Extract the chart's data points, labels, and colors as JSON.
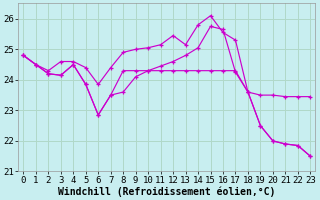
{
  "background_color": "#c8eef0",
  "grid_color": "#b0d8c8",
  "line_color": "#cc00cc",
  "xlim": [
    0,
    23
  ],
  "ylim": [
    21,
    26.5
  ],
  "yticks": [
    21,
    22,
    23,
    24,
    25,
    26
  ],
  "xticks": [
    0,
    1,
    2,
    3,
    4,
    5,
    6,
    7,
    8,
    9,
    10,
    11,
    12,
    13,
    14,
    15,
    16,
    17,
    18,
    19,
    20,
    21,
    22,
    23
  ],
  "curve1_x": [
    0,
    1,
    2,
    3,
    4,
    5,
    6,
    7,
    8,
    9,
    10,
    11,
    12,
    13,
    14,
    15,
    16,
    17,
    18,
    19,
    20,
    21,
    22,
    23
  ],
  "curve1_y": [
    24.8,
    24.5,
    24.3,
    24.6,
    24.6,
    24.4,
    23.85,
    24.4,
    24.9,
    25.0,
    25.05,
    25.15,
    25.45,
    25.15,
    25.8,
    26.1,
    25.55,
    25.3,
    23.6,
    22.5,
    22.0,
    21.9,
    21.85,
    21.5
  ],
  "curve2_x": [
    0,
    1,
    2,
    3,
    4,
    5,
    6,
    7,
    8,
    9,
    10,
    11,
    12,
    13,
    14,
    15,
    16,
    17,
    18,
    19,
    20,
    21,
    22,
    23
  ],
  "curve2_y": [
    24.8,
    24.5,
    24.2,
    24.15,
    24.5,
    23.85,
    22.85,
    23.5,
    24.3,
    24.3,
    24.3,
    24.3,
    24.3,
    24.3,
    24.3,
    24.3,
    24.3,
    24.3,
    23.6,
    23.5,
    23.5,
    23.45,
    23.45,
    23.45
  ],
  "curve3_x": [
    0,
    1,
    2,
    3,
    4,
    5,
    6,
    7,
    8,
    9,
    10,
    11,
    12,
    13,
    14,
    15,
    16,
    17,
    18,
    19,
    20,
    21,
    22,
    23
  ],
  "curve3_y": [
    24.8,
    24.5,
    24.2,
    24.15,
    24.5,
    23.85,
    22.85,
    23.5,
    23.6,
    24.1,
    24.3,
    24.45,
    24.6,
    24.8,
    25.05,
    25.75,
    25.65,
    24.25,
    23.6,
    22.5,
    22.0,
    21.9,
    21.85,
    21.5
  ],
  "xlabel": "Windchill (Refroidissement éolien,°C)",
  "tick_fontsize": 6.5,
  "xlabel_fontsize": 7
}
